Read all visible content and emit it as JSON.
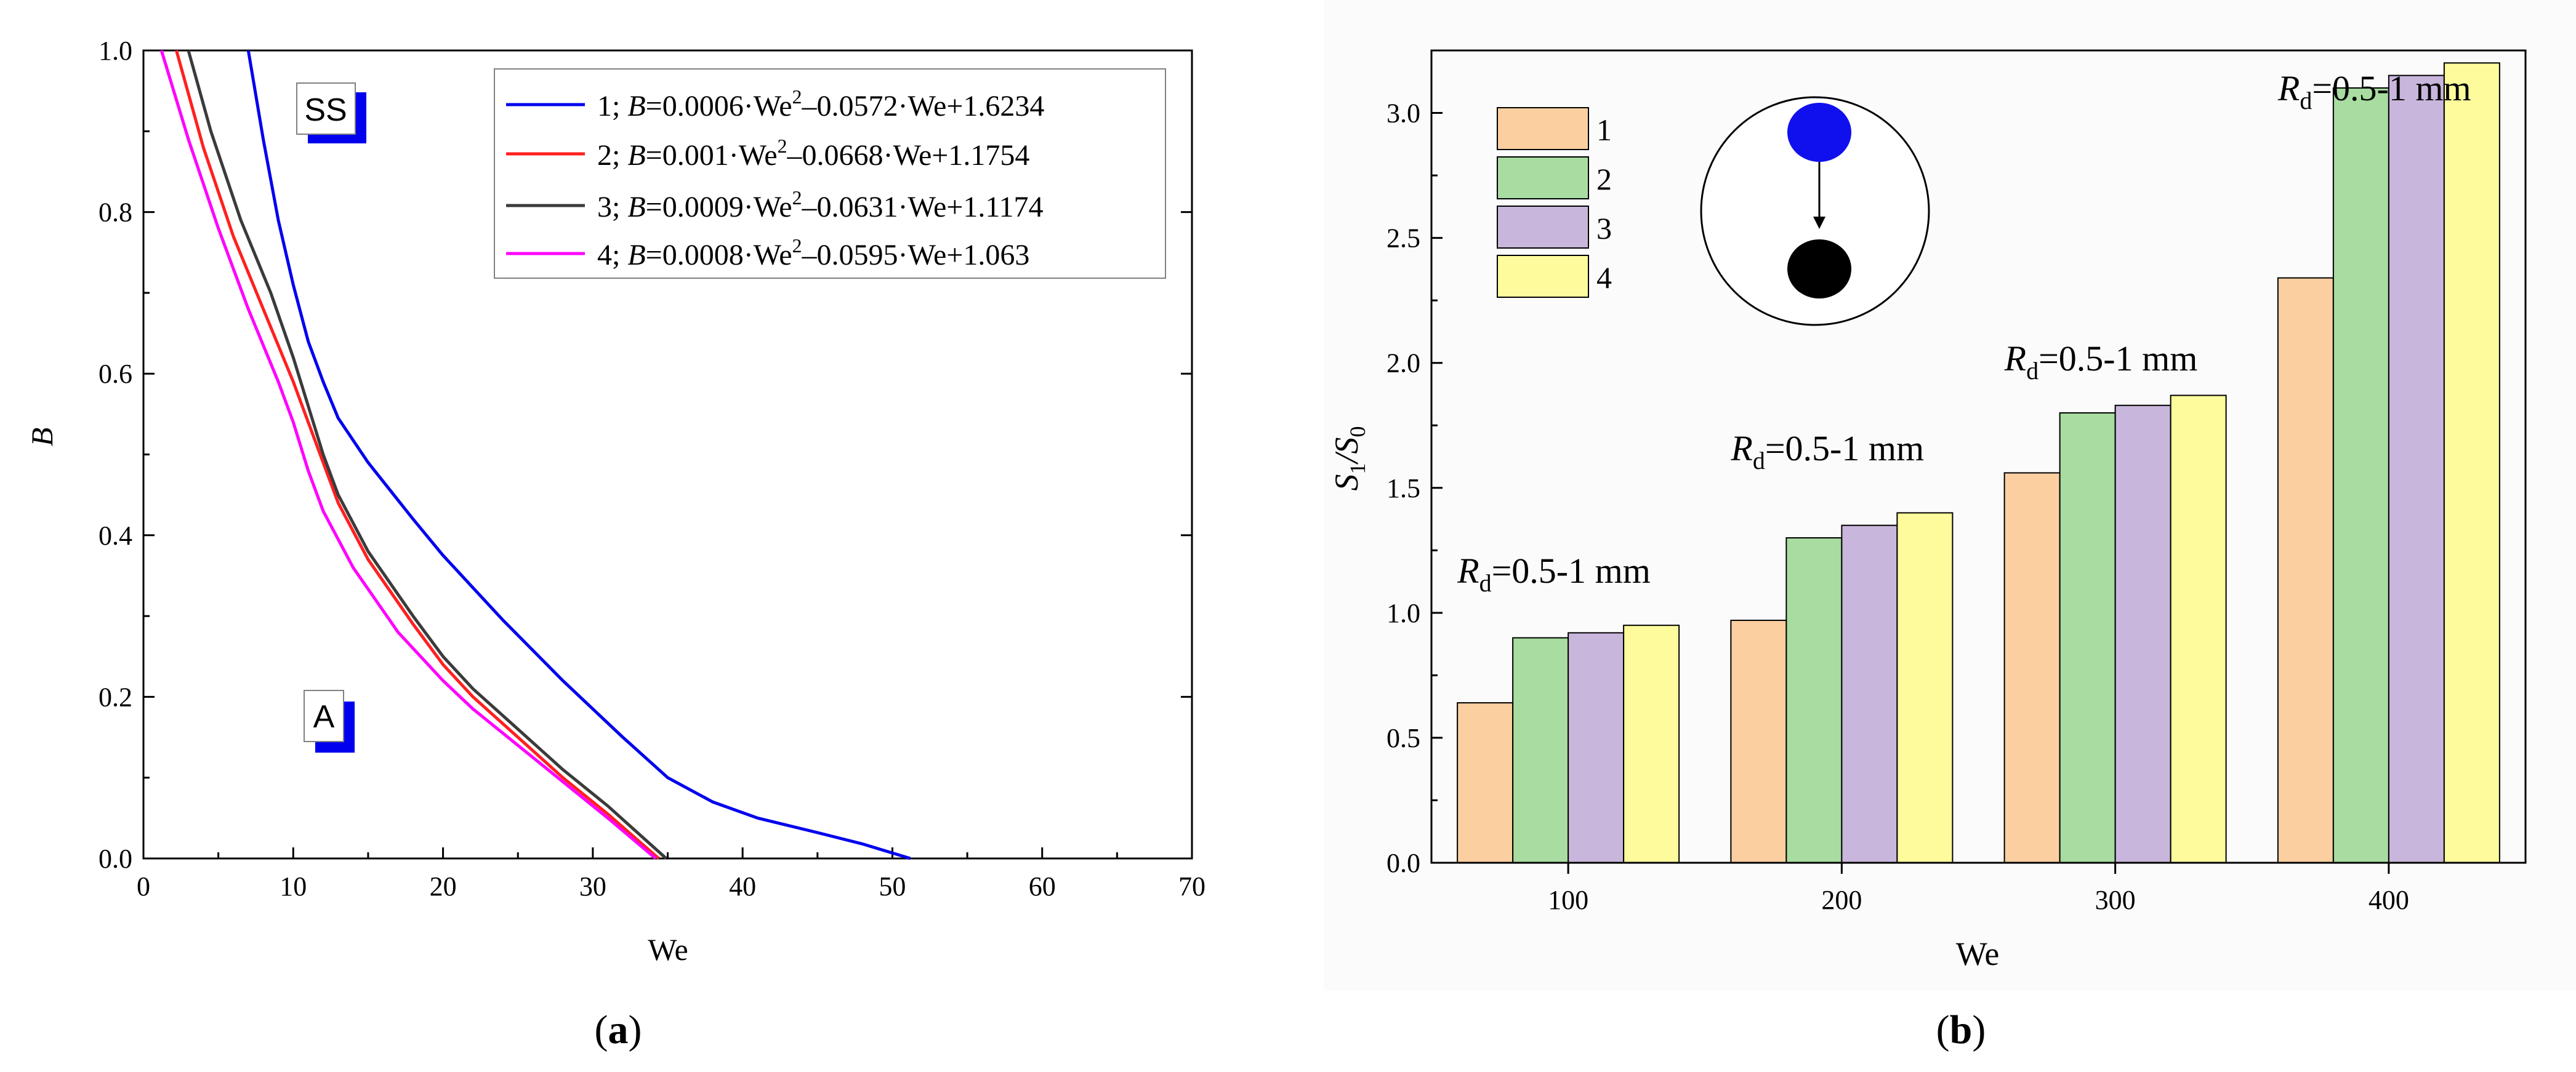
{
  "chart_data": [
    {
      "id": "a",
      "type": "line",
      "caption_label": "a",
      "xlabel": "We",
      "ylabel": "B",
      "xlim": [
        0,
        70
      ],
      "ylim": [
        0,
        1.0
      ],
      "xticks": [
        0,
        10,
        20,
        30,
        40,
        50,
        60,
        70
      ],
      "yticks": [
        0.0,
        0.2,
        0.4,
        0.6,
        0.8,
        1.0
      ],
      "xtick_labels": [
        "0",
        "10",
        "20",
        "30",
        "40",
        "50",
        "60",
        "70"
      ],
      "ytick_labels": [
        "0.0",
        "0.2",
        "0.4",
        "0.6",
        "0.8",
        "1.0"
      ],
      "legend": {
        "position": "top-right",
        "entries": [
          {
            "num": "1",
            "formula": [
              "=0.0006·We",
              "2",
              "–0.0572·We+1.6234"
            ]
          },
          {
            "num": "2",
            "formula": [
              "=0.001·We",
              "2",
              "–0.0668·We+1.1754"
            ]
          },
          {
            "num": "3",
            "formula": [
              "=0.0009·We",
              "2",
              "–0.0631·We+1.1174"
            ]
          },
          {
            "num": "4",
            "formula": [
              "=0.0008·We",
              "2",
              "–0.0595·We+1.063"
            ]
          }
        ]
      },
      "regions": [
        {
          "label": "SS",
          "at": [
            11.5,
            0.93
          ]
        },
        {
          "label": "A",
          "at": [
            12.1,
            0.18
          ]
        }
      ],
      "series": [
        {
          "name": "1",
          "color": "#0000ee",
          "x": [
            7,
            8,
            9,
            10,
            11,
            12,
            13,
            15,
            18,
            20,
            24,
            28,
            32,
            35,
            38,
            41,
            45,
            48,
            51.2
          ],
          "y": [
            1.0,
            0.89,
            0.79,
            0.71,
            0.64,
            0.59,
            0.545,
            0.49,
            0.42,
            0.375,
            0.295,
            0.22,
            0.15,
            0.1,
            0.07,
            0.05,
            0.032,
            0.018,
            0.0
          ]
        },
        {
          "name": "2",
          "color": "#ff2020",
          "x": [
            2.2,
            4,
            6,
            8,
            10,
            11,
            12,
            13,
            15,
            18,
            20,
            22,
            25,
            28,
            31,
            34.4
          ],
          "y": [
            1.0,
            0.88,
            0.77,
            0.68,
            0.59,
            0.54,
            0.49,
            0.44,
            0.37,
            0.29,
            0.24,
            0.2,
            0.15,
            0.1,
            0.055,
            0.0
          ]
        },
        {
          "name": "3",
          "color": "#3b3b3b",
          "x": [
            3,
            4.5,
            6.5,
            8.5,
            10,
            11,
            12,
            13,
            15,
            18,
            20,
            22,
            25,
            28,
            31,
            34.9
          ],
          "y": [
            1.0,
            0.9,
            0.79,
            0.7,
            0.62,
            0.56,
            0.5,
            0.45,
            0.38,
            0.3,
            0.25,
            0.21,
            0.16,
            0.11,
            0.065,
            0.0
          ]
        },
        {
          "name": "4",
          "color": "#ff00ff",
          "x": [
            1.2,
            3,
            5,
            7,
            9,
            10,
            11,
            12,
            14,
            17,
            20,
            22,
            25,
            28,
            31,
            34.2
          ],
          "y": [
            1.0,
            0.89,
            0.78,
            0.68,
            0.59,
            0.54,
            0.48,
            0.43,
            0.36,
            0.28,
            0.22,
            0.185,
            0.14,
            0.095,
            0.05,
            0.0
          ]
        }
      ]
    },
    {
      "id": "b",
      "type": "bar",
      "caption_label": "b",
      "xlabel": "We",
      "ylabel": [
        "S",
        "1",
        "/S",
        "0"
      ],
      "ylim": [
        0,
        3.25
      ],
      "yticks": [
        0.0,
        0.5,
        1.0,
        1.5,
        2.0,
        2.5,
        3.0
      ],
      "ytick_labels": [
        "0.0",
        "0.5",
        "1.0",
        "1.5",
        "2.0",
        "2.5",
        "3.0"
      ],
      "categories": [
        "100",
        "200",
        "300",
        "400"
      ],
      "series": [
        {
          "name": "1",
          "color": "#fbcfa0",
          "values": [
            0.64,
            0.97,
            1.56,
            2.34
          ]
        },
        {
          "name": "2",
          "color": "#a8dca0",
          "values": [
            0.9,
            1.3,
            1.8,
            3.1
          ]
        },
        {
          "name": "3",
          "color": "#c9b6dc",
          "values": [
            0.92,
            1.35,
            1.83,
            3.15
          ]
        },
        {
          "name": "4",
          "color": "#fdfb9c",
          "values": [
            0.95,
            1.4,
            1.87,
            3.2
          ]
        }
      ],
      "legend": {
        "position": "top-left",
        "entries": [
          "1",
          "2",
          "3",
          "4"
        ]
      },
      "annotations": [
        {
          "parts": [
            "R",
            "d",
            "=0.5-1 mm"
          ],
          "category": "100",
          "y": 1.12
        },
        {
          "parts": [
            "R",
            "d",
            "=0.5-1 mm"
          ],
          "category": "200",
          "y": 1.61
        },
        {
          "parts": [
            "R",
            "d",
            "=0.5-1 mm"
          ],
          "category": "300",
          "y": 1.97
        },
        {
          "parts": [
            "R",
            "d",
            "=0.5-1 mm"
          ],
          "category": "400",
          "y": 3.05
        }
      ],
      "inset": {
        "description_colors": [
          "#1010ee",
          "#000000"
        ]
      }
    }
  ]
}
